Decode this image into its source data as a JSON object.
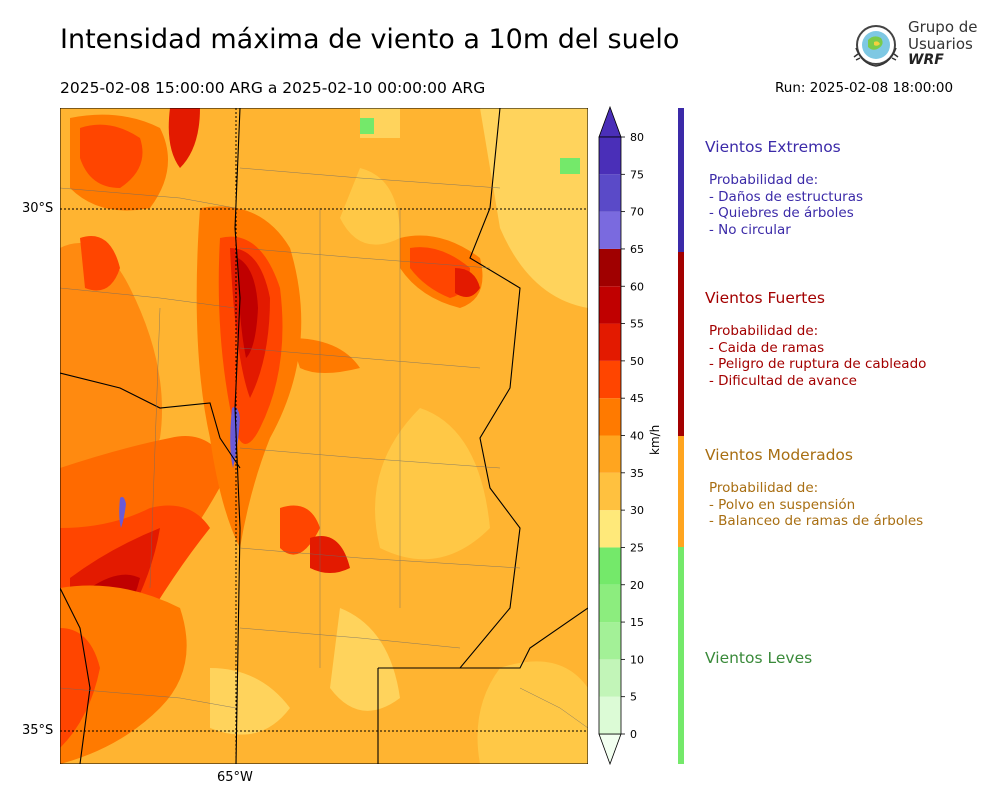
{
  "title": "Intensidad máxima de viento a 10m del suelo",
  "period": "2025-02-08 15:00:00 ARG  a  2025-02-10 00:00:00 ARG",
  "run": "Run: 2025-02-08 18:00:00",
  "logo": {
    "line1": "Grupo de",
    "line2": "Usuarios",
    "line3": "WRF"
  },
  "map": {
    "lat_labels": [
      "30°S",
      "35°S"
    ],
    "lon_labels": [
      "65°W"
    ]
  },
  "colorbar": {
    "unit": "km/h",
    "ticks": [
      "0",
      "5",
      "10",
      "15",
      "20",
      "25",
      "30",
      "35",
      "40",
      "45",
      "50",
      "55",
      "60",
      "65",
      "70",
      "75",
      "80"
    ],
    "colors": [
      "#f2fff0",
      "#dcfbd6",
      "#c2f5b8",
      "#a3f197",
      "#8ced7e",
      "#74e96a",
      "#ffe97a",
      "#ffc13f",
      "#ffa51f",
      "#ff7a00",
      "#ff4500",
      "#e31a00",
      "#c00000",
      "#a00000",
      "#7a6adf",
      "#5a4ac8",
      "#4a2fb8"
    ]
  },
  "categories": [
    {
      "name": "Vientos Extremos",
      "color": "#3b2aa8",
      "lines": [
        "Probabilidad de:",
        "- Daños de estructuras",
        "- Quiebres de árboles",
        "- No circular"
      ]
    },
    {
      "name": "Vientos Fuertes",
      "color": "#a30000",
      "lines": [
        "Probabilidad de:",
        "- Caida de ramas",
        "- Peligro de ruptura de cableado",
        "- Dificultad de avance"
      ]
    },
    {
      "name": "Vientos Moderados",
      "color": "#a86e12",
      "lines": [
        "Probabilidad de:",
        "- Polvo en suspensión",
        "- Balanceo de ramas de árboles"
      ]
    },
    {
      "name": "Vientos Leves",
      "color": "#3a8a3a",
      "lines": []
    }
  ],
  "strip_colors": [
    "#3b2aa8",
    "#a30000",
    "#ffa51f",
    "#74e96a"
  ]
}
